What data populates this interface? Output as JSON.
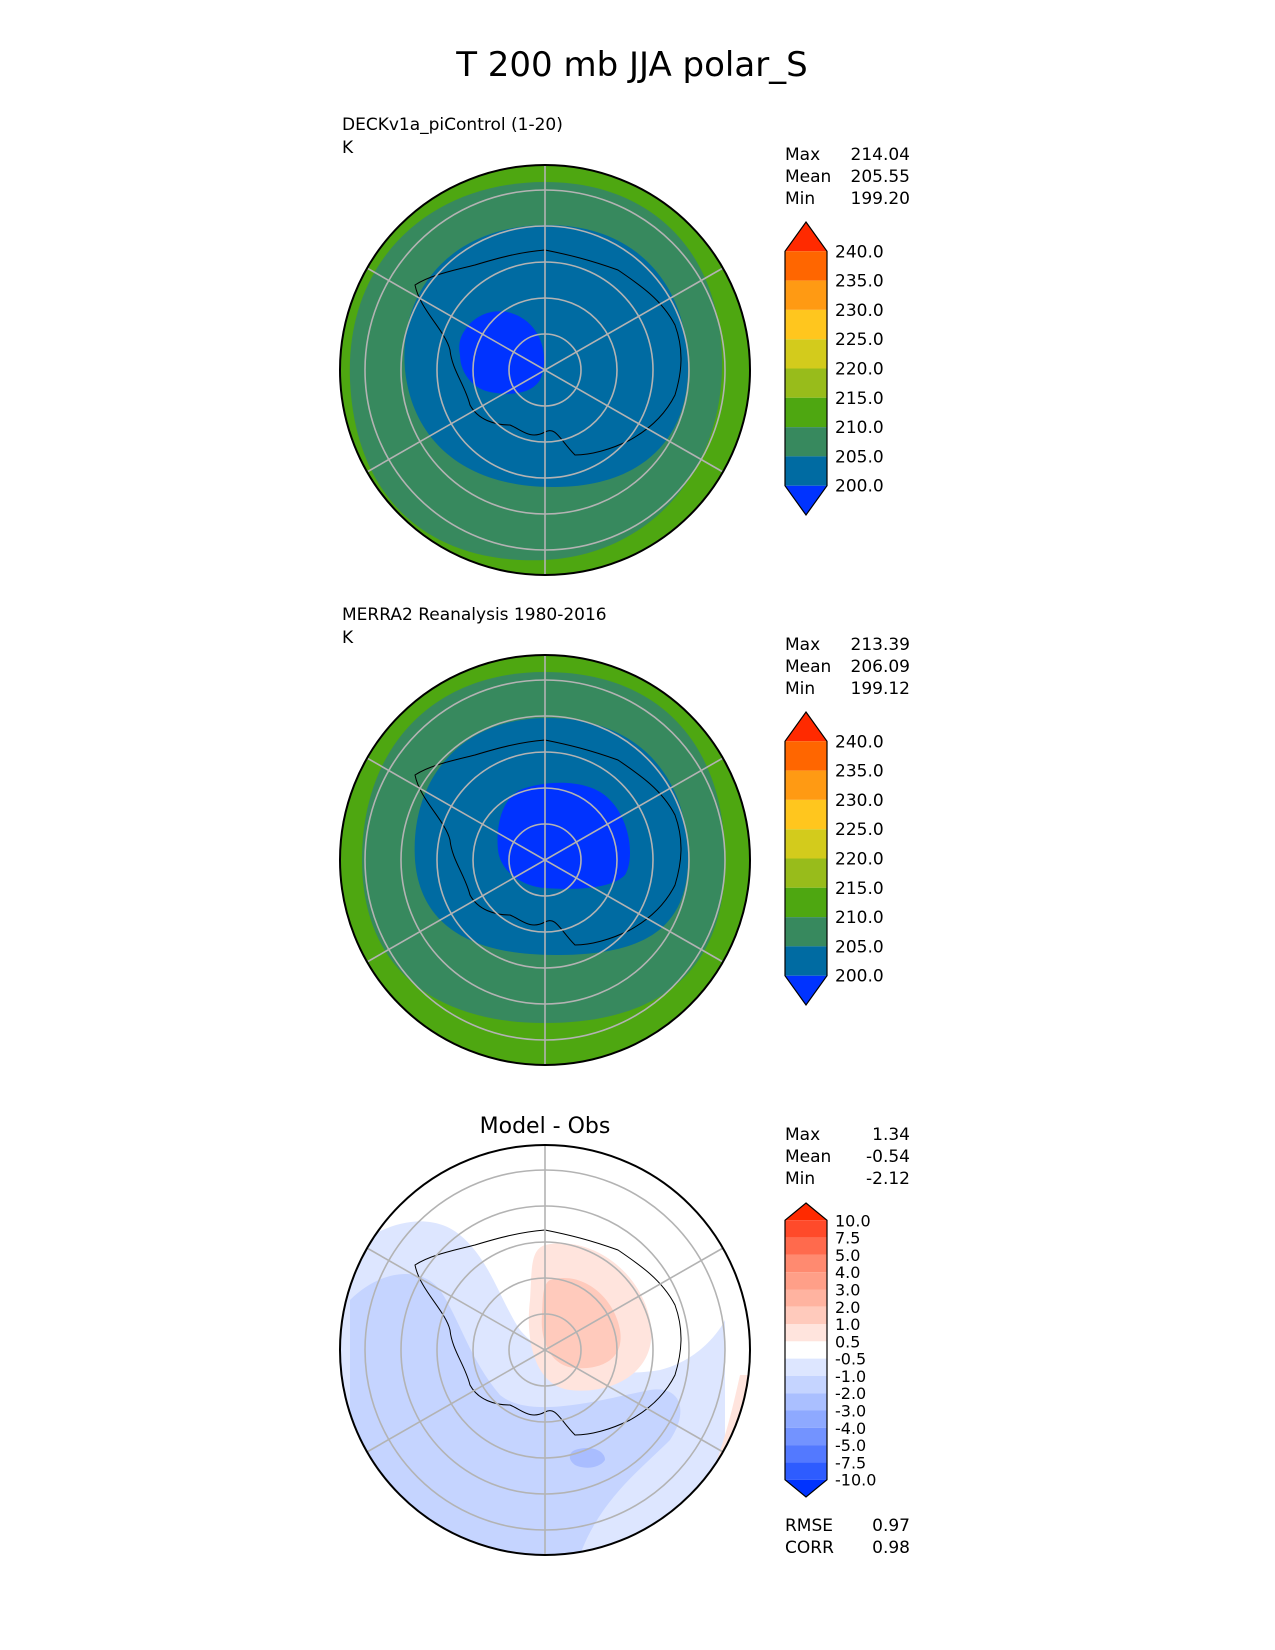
{
  "title": "T 200 mb JJA polar_S",
  "panels": [
    {
      "id": "test",
      "label": "DECKv1a_piControl (1-20)",
      "units": "K",
      "center_title": "",
      "stats": [
        {
          "name": "Max",
          "value": "214.04"
        },
        {
          "name": "Mean",
          "value": "205.55"
        },
        {
          "name": "Min",
          "value": "199.20"
        }
      ],
      "colorbar": {
        "labels": [
          "240.0",
          "235.0",
          "230.0",
          "225.0",
          "220.0",
          "215.0",
          "210.0",
          "205.0",
          "200.0"
        ],
        "colors": [
          "#ff2a00",
          "#ff6600",
          "#ff9a13",
          "#ffc61e",
          "#d3cb1c",
          "#98bc1b",
          "#4ea711",
          "#37895e",
          "#006ba2",
          "#0033ff"
        ]
      },
      "field": {
        "rings": [
          {
            "range_K": "210-215",
            "color": "#4ea711"
          },
          {
            "range_K": "205-210",
            "color": "#37895e"
          },
          {
            "range_K": "200-205",
            "color": "#006ba2"
          },
          {
            "range_K": "<200",
            "color": "#0033ff"
          }
        ]
      }
    },
    {
      "id": "ref",
      "label": "MERRA2 Reanalysis 1980-2016",
      "units": "K",
      "center_title": "",
      "stats": [
        {
          "name": "Max",
          "value": "213.39"
        },
        {
          "name": "Mean",
          "value": "206.09"
        },
        {
          "name": "Min",
          "value": "199.12"
        }
      ],
      "colorbar": {
        "labels": [
          "240.0",
          "235.0",
          "230.0",
          "225.0",
          "220.0",
          "215.0",
          "210.0",
          "205.0",
          "200.0"
        ],
        "colors": [
          "#ff2a00",
          "#ff6600",
          "#ff9a13",
          "#ffc61e",
          "#d3cb1c",
          "#98bc1b",
          "#4ea711",
          "#37895e",
          "#006ba2",
          "#0033ff"
        ]
      },
      "field": {
        "rings": [
          {
            "range_K": "210-215",
            "color": "#4ea711"
          },
          {
            "range_K": "205-210",
            "color": "#37895e"
          },
          {
            "range_K": "200-205",
            "color": "#006ba2"
          },
          {
            "range_K": "<200",
            "color": "#0033ff"
          }
        ]
      }
    },
    {
      "id": "diff",
      "label": "",
      "units": "",
      "center_title": "Model - Obs",
      "stats": [
        {
          "name": "Max",
          "value": "1.34"
        },
        {
          "name": "Mean",
          "value": "-0.54"
        },
        {
          "name": "Min",
          "value": "-2.12"
        }
      ],
      "extra_stats": [
        {
          "name": "RMSE",
          "value": "0.97"
        },
        {
          "name": "CORR",
          "value": "0.98"
        }
      ],
      "colorbar": {
        "labels": [
          "10.0",
          "7.5",
          "5.0",
          "4.0",
          "3.0",
          "2.0",
          "1.0",
          "0.5",
          "-0.5",
          "-1.0",
          "-2.0",
          "-3.0",
          "-4.0",
          "-5.0",
          "-7.5",
          "-10.0"
        ],
        "colors": [
          "#ff2a00",
          "#ff4a2a",
          "#ff6a4d",
          "#ff8a70",
          "#ff9f88",
          "#ffb3a0",
          "#ffcabc",
          "#ffe4dd",
          "#ffffff",
          "#dde6ff",
          "#c5d4ff",
          "#aabfff",
          "#8ea9ff",
          "#7393ff",
          "#5379ff",
          "#2e5cff",
          "#0033ff"
        ]
      },
      "field": {
        "rings": [
          {
            "range_K": "-2 to -1",
            "color": "#c5d4ff"
          },
          {
            "range_K": "-1 to -0.5",
            "color": "#dde6ff"
          },
          {
            "range_K": "-0.5 to 0.5",
            "color": "#ffffff"
          },
          {
            "range_K": "0.5 to 1",
            "color": "#ffe4dd"
          },
          {
            "range_K": "1 to 2",
            "color": "#ffcabc"
          }
        ]
      }
    }
  ]
}
